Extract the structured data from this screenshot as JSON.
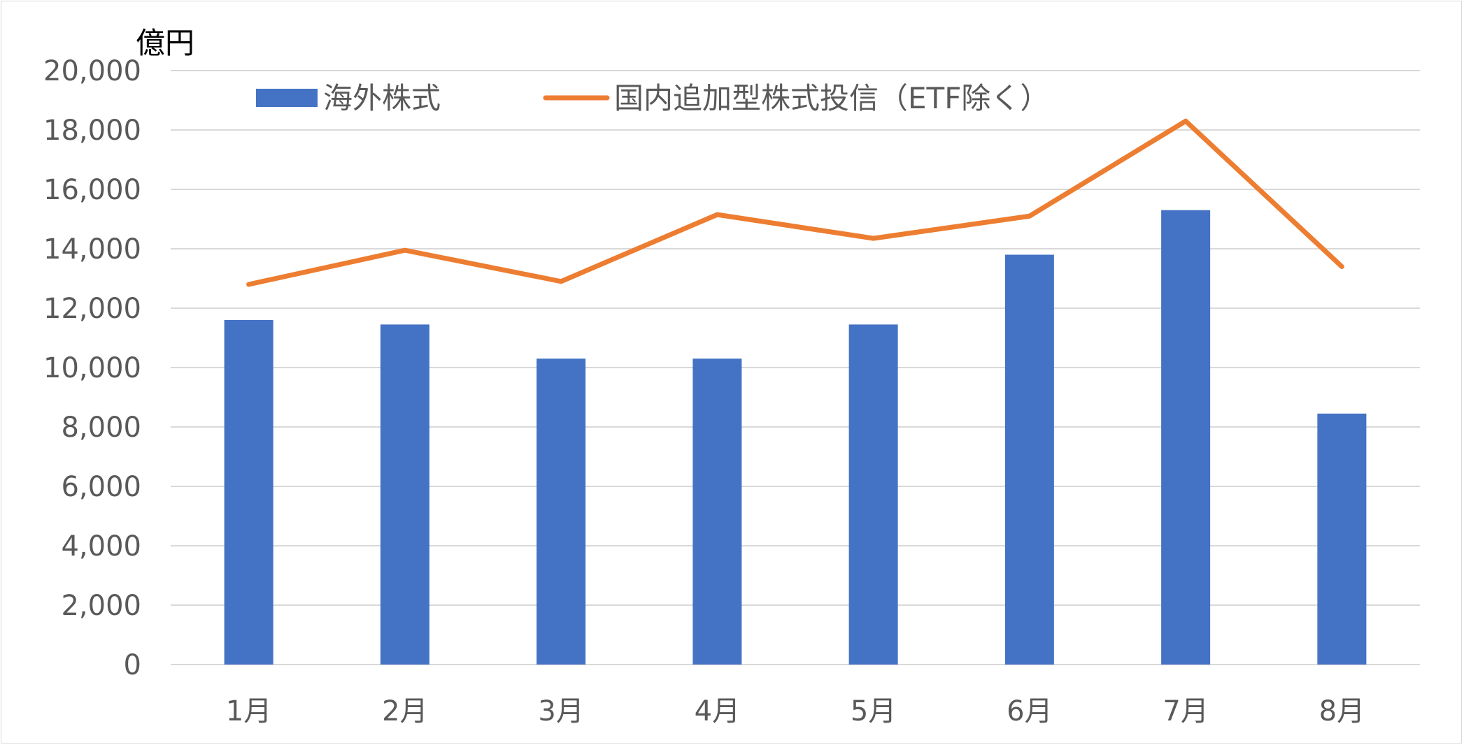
{
  "chart_data": {
    "type": "bar+line",
    "categories": [
      "1月",
      "2月",
      "3月",
      "4月",
      "5月",
      "6月",
      "7月",
      "8月"
    ],
    "series": [
      {
        "name": "海外株式",
        "type": "bar",
        "color": "#4472c4",
        "values": [
          11600,
          11450,
          10300,
          10300,
          11450,
          13800,
          15300,
          8450
        ]
      },
      {
        "name": "国内追加型株式投信（ETF除く）",
        "type": "line",
        "color": "#ed7d31",
        "values": [
          12800,
          13950,
          12900,
          15150,
          14350,
          15100,
          18300,
          13400
        ]
      }
    ],
    "ylabel": "億円",
    "ylim": [
      0,
      20000
    ],
    "yticks": [
      0,
      2000,
      4000,
      6000,
      8000,
      10000,
      12000,
      14000,
      16000,
      18000,
      20000
    ],
    "ytick_labels": [
      "0",
      "2,000",
      "4,000",
      "6,000",
      "8,000",
      "10,000",
      "12,000",
      "14,000",
      "16,000",
      "18,000",
      "20,000"
    ],
    "grid": true,
    "legend_position": "top"
  }
}
